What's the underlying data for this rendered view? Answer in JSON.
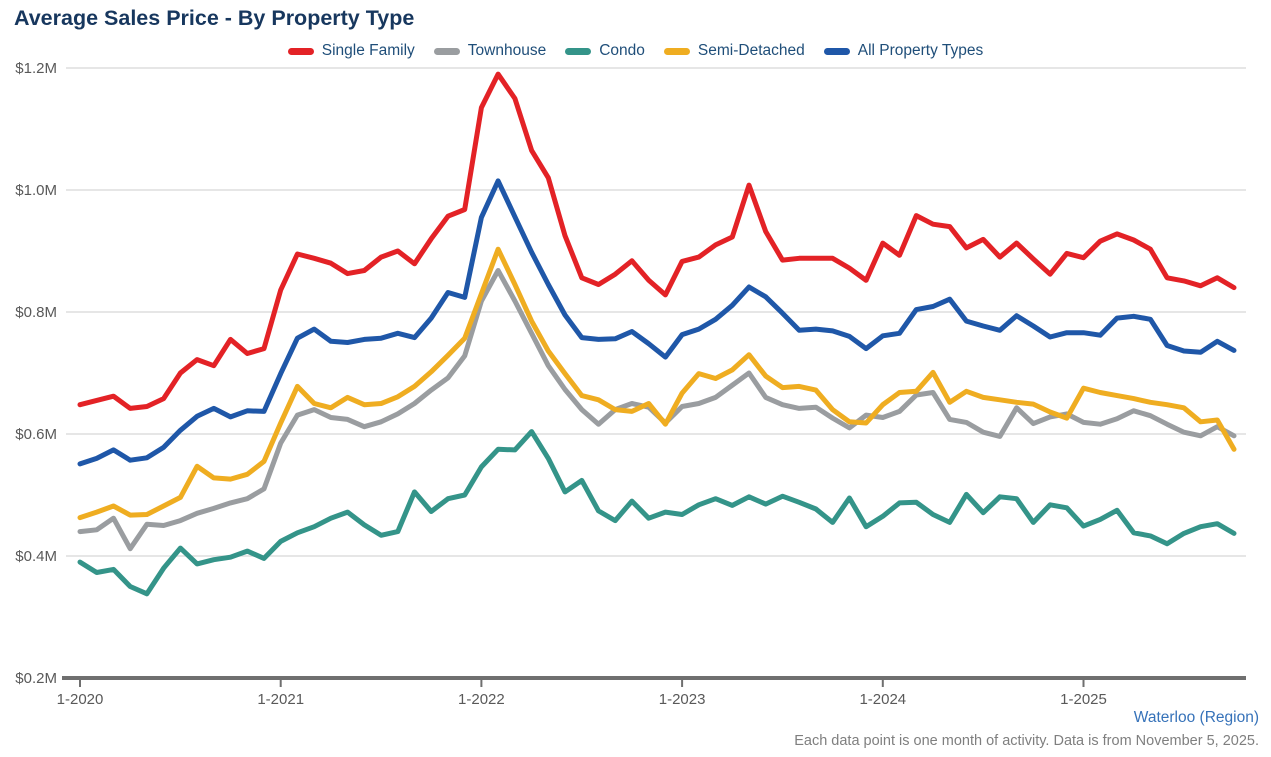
{
  "header": {
    "title": "Average Sales Price - By Property Type"
  },
  "footer": {
    "region": "Waterloo (Region)",
    "note": "Each data point is one month of activity. Data is from November 5, 2025."
  },
  "colors": {
    "title_text": "#17375e",
    "legend_text": "#1f4e79",
    "axis_text": "#595959",
    "gridline": "#d8d8d8",
    "axis_line": "#6f6f6f",
    "region_link": "#3672b9",
    "footnote_text": "#7f7f7f",
    "background": "#ffffff"
  },
  "chart_data": {
    "type": "line",
    "title": "Average Sales Price - By Property Type",
    "x_unit": "month",
    "x_range_months": [
      "1-2020",
      "10-2025"
    ],
    "n_points": 70,
    "ylim": [
      0.2,
      1.2
    ],
    "values_unit": "$M",
    "grid": "horizontal",
    "legend_position": "top-center",
    "y_ticks": [
      {
        "v": 1.2,
        "label": "$1.2M"
      },
      {
        "v": 1.0,
        "label": "$1.0M"
      },
      {
        "v": 0.8,
        "label": "$0.8M"
      },
      {
        "v": 0.6,
        "label": "$0.6M"
      },
      {
        "v": 0.4,
        "label": "$0.4M"
      },
      {
        "v": 0.2,
        "label": "$0.2M"
      }
    ],
    "x_ticks": [
      {
        "month_index": 0,
        "label": "1-2020"
      },
      {
        "month_index": 12,
        "label": "1-2021"
      },
      {
        "month_index": 24,
        "label": "1-2022"
      },
      {
        "month_index": 36,
        "label": "1-2023"
      },
      {
        "month_index": 48,
        "label": "1-2024"
      },
      {
        "month_index": 60,
        "label": "1-2025"
      }
    ],
    "series": [
      {
        "id": "single-family",
        "name": "Single Family",
        "color": "#e32226",
        "values": [
          0.648,
          0.655,
          0.662,
          0.642,
          0.645,
          0.658,
          0.7,
          0.722,
          0.712,
          0.755,
          0.732,
          0.74,
          0.836,
          0.895,
          0.888,
          0.88,
          0.863,
          0.868,
          0.89,
          0.9,
          0.879,
          0.92,
          0.957,
          0.968,
          1.135,
          1.19,
          1.15,
          1.065,
          1.02,
          0.925,
          0.856,
          0.845,
          0.862,
          0.884,
          0.852,
          0.828,
          0.883,
          0.89,
          0.91,
          0.923,
          1.008,
          0.932,
          0.885,
          0.888,
          0.888,
          0.888,
          0.872,
          0.852,
          0.913,
          0.893,
          0.958,
          0.944,
          0.94,
          0.905,
          0.919,
          0.89,
          0.913,
          0.887,
          0.862,
          0.896,
          0.889,
          0.916,
          0.928,
          0.918,
          0.903,
          0.856,
          0.851,
          0.843,
          0.856,
          0.84
        ]
      },
      {
        "id": "townhouse",
        "name": "Townhouse",
        "color": "#9a9da0",
        "values": [
          0.44,
          0.443,
          0.462,
          0.412,
          0.452,
          0.45,
          0.458,
          0.47,
          0.478,
          0.487,
          0.494,
          0.51,
          0.585,
          0.631,
          0.64,
          0.627,
          0.624,
          0.612,
          0.62,
          0.633,
          0.65,
          0.672,
          0.692,
          0.728,
          0.818,
          0.868,
          0.818,
          0.765,
          0.712,
          0.673,
          0.64,
          0.616,
          0.64,
          0.65,
          0.644,
          0.618,
          0.645,
          0.65,
          0.66,
          0.68,
          0.7,
          0.66,
          0.648,
          0.642,
          0.644,
          0.626,
          0.61,
          0.631,
          0.627,
          0.637,
          0.664,
          0.668,
          0.624,
          0.619,
          0.603,
          0.596,
          0.643,
          0.617,
          0.628,
          0.633,
          0.619,
          0.616,
          0.625,
          0.638,
          0.63,
          0.616,
          0.603,
          0.597,
          0.612,
          0.597
        ]
      },
      {
        "id": "condo",
        "name": "Condo",
        "color": "#349489",
        "values": [
          0.39,
          0.373,
          0.378,
          0.35,
          0.338,
          0.38,
          0.413,
          0.387,
          0.394,
          0.398,
          0.408,
          0.396,
          0.424,
          0.438,
          0.448,
          0.462,
          0.472,
          0.451,
          0.434,
          0.44,
          0.505,
          0.473,
          0.494,
          0.5,
          0.546,
          0.575,
          0.574,
          0.604,
          0.56,
          0.505,
          0.524,
          0.474,
          0.458,
          0.49,
          0.462,
          0.472,
          0.468,
          0.484,
          0.494,
          0.483,
          0.497,
          0.485,
          0.498,
          0.488,
          0.477,
          0.455,
          0.495,
          0.448,
          0.465,
          0.487,
          0.488,
          0.468,
          0.455,
          0.501,
          0.471,
          0.497,
          0.494,
          0.455,
          0.484,
          0.479,
          0.449,
          0.46,
          0.475,
          0.438,
          0.433,
          0.42,
          0.437,
          0.448,
          0.453,
          0.437
        ]
      },
      {
        "id": "semi-detached",
        "name": "Semi-Detached",
        "color": "#efad21",
        "values": [
          0.463,
          0.472,
          0.482,
          0.467,
          0.468,
          0.482,
          0.496,
          0.547,
          0.528,
          0.526,
          0.534,
          0.555,
          0.618,
          0.678,
          0.65,
          0.643,
          0.66,
          0.648,
          0.65,
          0.661,
          0.678,
          0.702,
          0.729,
          0.757,
          0.83,
          0.903,
          0.845,
          0.785,
          0.736,
          0.699,
          0.663,
          0.656,
          0.64,
          0.637,
          0.65,
          0.616,
          0.667,
          0.699,
          0.691,
          0.705,
          0.73,
          0.695,
          0.676,
          0.678,
          0.672,
          0.64,
          0.62,
          0.618,
          0.648,
          0.668,
          0.67,
          0.701,
          0.652,
          0.67,
          0.66,
          0.656,
          0.652,
          0.649,
          0.636,
          0.626,
          0.675,
          0.668,
          0.663,
          0.658,
          0.652,
          0.648,
          0.643,
          0.62,
          0.623,
          0.575
        ]
      },
      {
        "id": "all-property-types",
        "name": "All Property Types",
        "color": "#1f57a8",
        "values": [
          0.551,
          0.56,
          0.574,
          0.557,
          0.561,
          0.578,
          0.606,
          0.629,
          0.642,
          0.628,
          0.638,
          0.637,
          0.699,
          0.757,
          0.772,
          0.752,
          0.75,
          0.755,
          0.757,
          0.765,
          0.758,
          0.79,
          0.832,
          0.824,
          0.955,
          1.015,
          0.956,
          0.898,
          0.845,
          0.795,
          0.758,
          0.755,
          0.756,
          0.768,
          0.748,
          0.726,
          0.763,
          0.772,
          0.788,
          0.811,
          0.841,
          0.825,
          0.798,
          0.77,
          0.772,
          0.769,
          0.76,
          0.74,
          0.761,
          0.765,
          0.804,
          0.809,
          0.821,
          0.785,
          0.777,
          0.77,
          0.794,
          0.777,
          0.759,
          0.766,
          0.766,
          0.762,
          0.79,
          0.793,
          0.788,
          0.745,
          0.736,
          0.734,
          0.752,
          0.737
        ]
      }
    ]
  }
}
